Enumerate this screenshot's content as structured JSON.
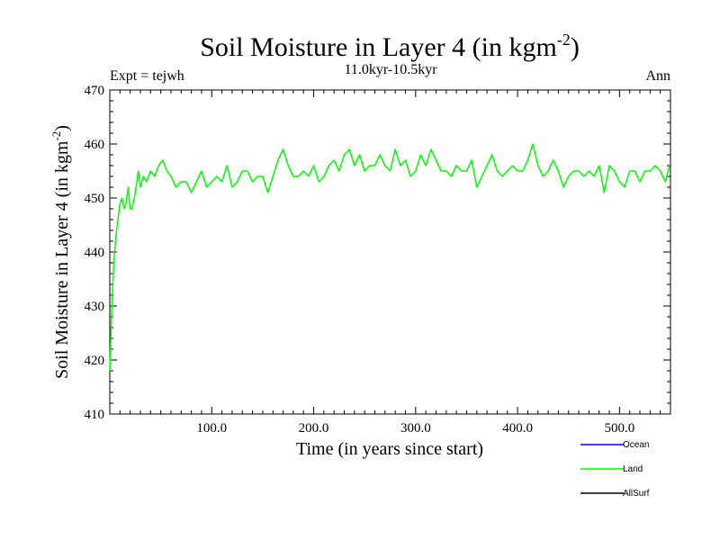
{
  "colors": {
    "ocean": "#0000ff",
    "land": "#00ff00",
    "allsurf": "#000000",
    "axis": "#000000"
  },
  "chart_data": {
    "type": "line",
    "title": "Soil Moisture in Layer 4 (in kgm",
    "title_sup": "-2",
    "title_close": ")",
    "subtitle": "11.0kyr-10.5kyr",
    "left_label": "Expt = tejwh",
    "right_label": "Ann",
    "xlabel": "Time (in years since start)",
    "ylabel": "Soil Moisture in Layer 4 (in kgm",
    "ylabel_sup": "-2",
    "ylabel_close": ")",
    "xlim": [
      0,
      550
    ],
    "ylim": [
      410,
      470
    ],
    "xticks": [
      "100.0",
      "200.0",
      "300.0",
      "400.0",
      "500.0"
    ],
    "xtick_values": [
      100,
      200,
      300,
      400,
      500
    ],
    "yticks": [
      "410",
      "420",
      "430",
      "440",
      "450",
      "460",
      "470"
    ],
    "ytick_values": [
      410,
      420,
      430,
      440,
      450,
      460,
      470
    ],
    "legend": [
      "Ocean",
      "Land",
      "AllSurf"
    ],
    "series": [
      {
        "name": "Land",
        "x": [
          0,
          2,
          4,
          6,
          8,
          10,
          12,
          14,
          16,
          18,
          20,
          22,
          25,
          28,
          30,
          33,
          36,
          40,
          44,
          48,
          52,
          56,
          60,
          65,
          70,
          75,
          80,
          85,
          90,
          95,
          100,
          105,
          110,
          115,
          120,
          125,
          130,
          135,
          140,
          145,
          150,
          155,
          160,
          165,
          170,
          175,
          180,
          185,
          190,
          195,
          200,
          205,
          210,
          215,
          220,
          225,
          230,
          235,
          240,
          245,
          250,
          255,
          260,
          265,
          270,
          275,
          280,
          285,
          290,
          295,
          300,
          305,
          310,
          315,
          320,
          325,
          330,
          335,
          340,
          345,
          350,
          355,
          360,
          365,
          370,
          375,
          380,
          385,
          390,
          395,
          400,
          405,
          410,
          415,
          420,
          425,
          430,
          435,
          440,
          445,
          450,
          455,
          460,
          465,
          470,
          475,
          480,
          485,
          490,
          495,
          500,
          505,
          510,
          515,
          520,
          525,
          530,
          535,
          540,
          545,
          549
        ],
        "values": [
          418,
          430,
          438,
          443,
          446,
          449,
          450,
          448,
          449,
          452,
          448,
          448,
          451,
          455,
          452,
          454,
          453,
          455,
          454,
          456,
          457,
          455,
          454,
          452,
          453,
          453,
          451,
          453,
          455,
          452,
          453,
          454,
          453,
          456,
          452,
          453,
          455,
          455,
          453,
          454,
          454,
          451,
          454,
          457,
          459,
          456,
          454,
          454,
          455,
          454,
          456,
          453,
          454,
          456,
          457,
          455,
          458,
          459,
          456,
          458,
          455,
          456,
          456,
          458,
          456,
          455,
          459,
          456,
          457,
          454,
          455,
          458,
          456,
          459,
          457,
          455,
          455,
          454,
          456,
          455,
          455,
          457,
          452,
          454,
          456,
          458,
          455,
          454,
          455,
          456,
          455,
          455,
          457,
          460,
          456,
          454,
          455,
          457,
          455,
          452,
          454,
          455,
          455,
          454,
          455,
          454,
          456,
          451,
          456,
          455,
          453,
          452,
          455,
          455,
          453,
          455,
          455,
          456,
          455,
          453,
          456
        ]
      }
    ]
  }
}
